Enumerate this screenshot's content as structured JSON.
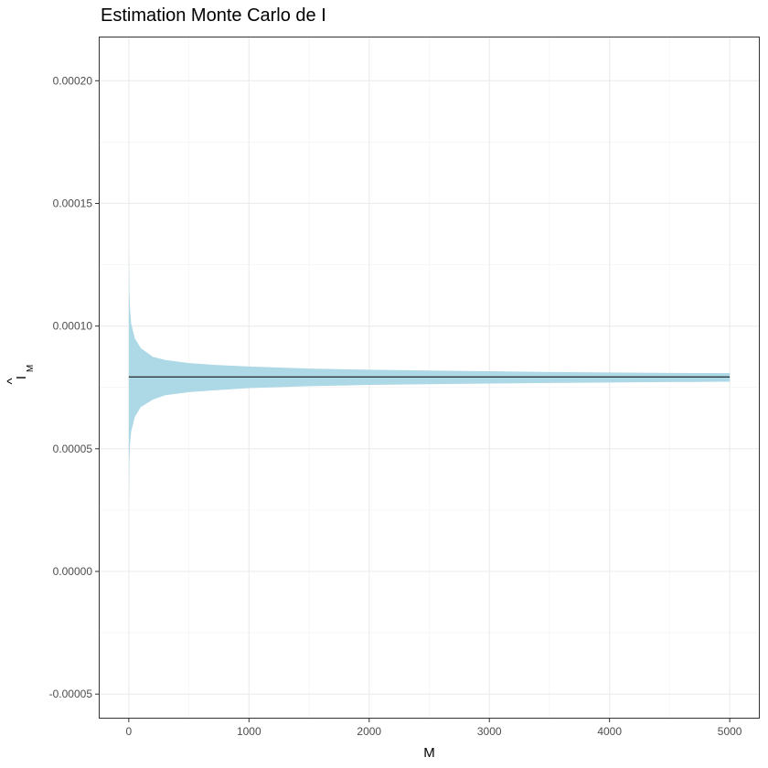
{
  "chart_data": {
    "type": "area",
    "title": "Estimation Monte Carlo de I",
    "xlabel": "M",
    "ylabel": {
      "base": "I",
      "hat": "^",
      "subscript": "M"
    },
    "xlim": [
      -250,
      5250
    ],
    "ylim": [
      -6e-05,
      0.000218
    ],
    "x_ticks": [
      0,
      1000,
      2000,
      3000,
      4000,
      5000
    ],
    "x_tick_labels": [
      "0",
      "1000",
      "2000",
      "3000",
      "4000",
      "5000"
    ],
    "y_ticks": [
      -5e-05,
      0,
      5e-05,
      0.0001,
      0.00015,
      0.0002
    ],
    "y_tick_labels": [
      "-0.00005",
      "0.00000",
      "0.00005",
      "0.00010",
      "0.00015",
      "0.00020"
    ],
    "grid": true,
    "series": [
      {
        "role": "confidence-band",
        "color": "#add8e6",
        "x": [
          1,
          5,
          10,
          20,
          50,
          100,
          200,
          300,
          500,
          700,
          1000,
          1500,
          2000,
          2500,
          3000,
          3500,
          4000,
          4500,
          5000
        ],
        "lower": [
          2.7e-05,
          4.5e-05,
          5.2e-05,
          5.7e-05,
          6.3e-05,
          6.7e-05,
          7e-05,
          7.18e-05,
          7.31e-05,
          7.38e-05,
          7.47e-05,
          7.55e-05,
          7.6e-05,
          7.63e-05,
          7.66e-05,
          7.68e-05,
          7.7e-05,
          7.72e-05,
          7.73e-05
        ],
        "upper": [
          0.000131,
          0.000114,
          0.000107,
          0.000101,
          9.5e-05,
          9.1e-05,
          8.75e-05,
          8.62e-05,
          8.49e-05,
          8.42e-05,
          8.35e-05,
          8.27e-05,
          8.22e-05,
          8.19e-05,
          8.16e-05,
          8.13e-05,
          8.11e-05,
          8.09e-05,
          8.08e-05
        ]
      },
      {
        "role": "reference-line",
        "color": "#000000",
        "x": [
          0,
          5000
        ],
        "y": [
          7.93e-05,
          7.93e-05
        ]
      }
    ]
  }
}
